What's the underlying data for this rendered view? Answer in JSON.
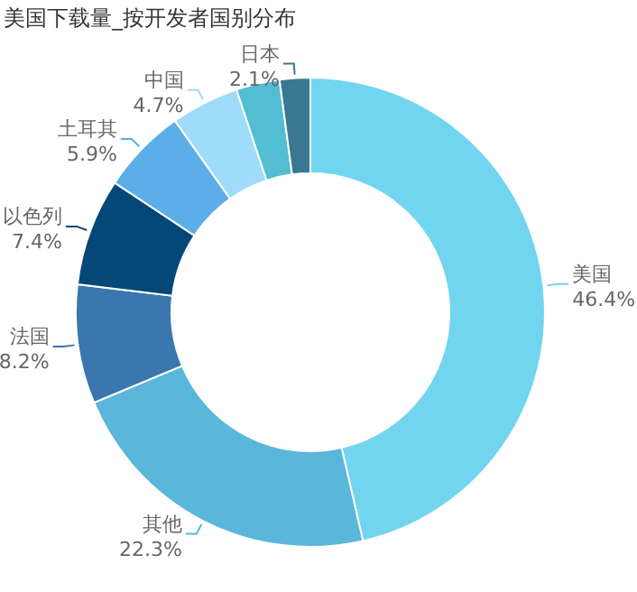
{
  "chart_data": {
    "type": "donut",
    "title": "美国下载量_按开发者国别分布",
    "categories": [
      "美国",
      "其他",
      "法国",
      "以色列",
      "土耳其",
      "中国",
      null,
      "日本"
    ],
    "values": [
      46.4,
      22.3,
      8.2,
      7.4,
      5.9,
      4.7,
      3.0,
      2.1
    ],
    "value_labels": [
      "46.4%",
      "22.3%",
      "8.2%",
      "7.4%",
      "5.9%",
      "4.7%",
      null,
      "2.1%"
    ],
    "colors": [
      "#72d5f0",
      "#5ab6db",
      "#3a77ae",
      "#034877",
      "#5caee8",
      "#9fdcfa",
      "#52bdd3",
      "#3a7892"
    ],
    "legend": false
  }
}
